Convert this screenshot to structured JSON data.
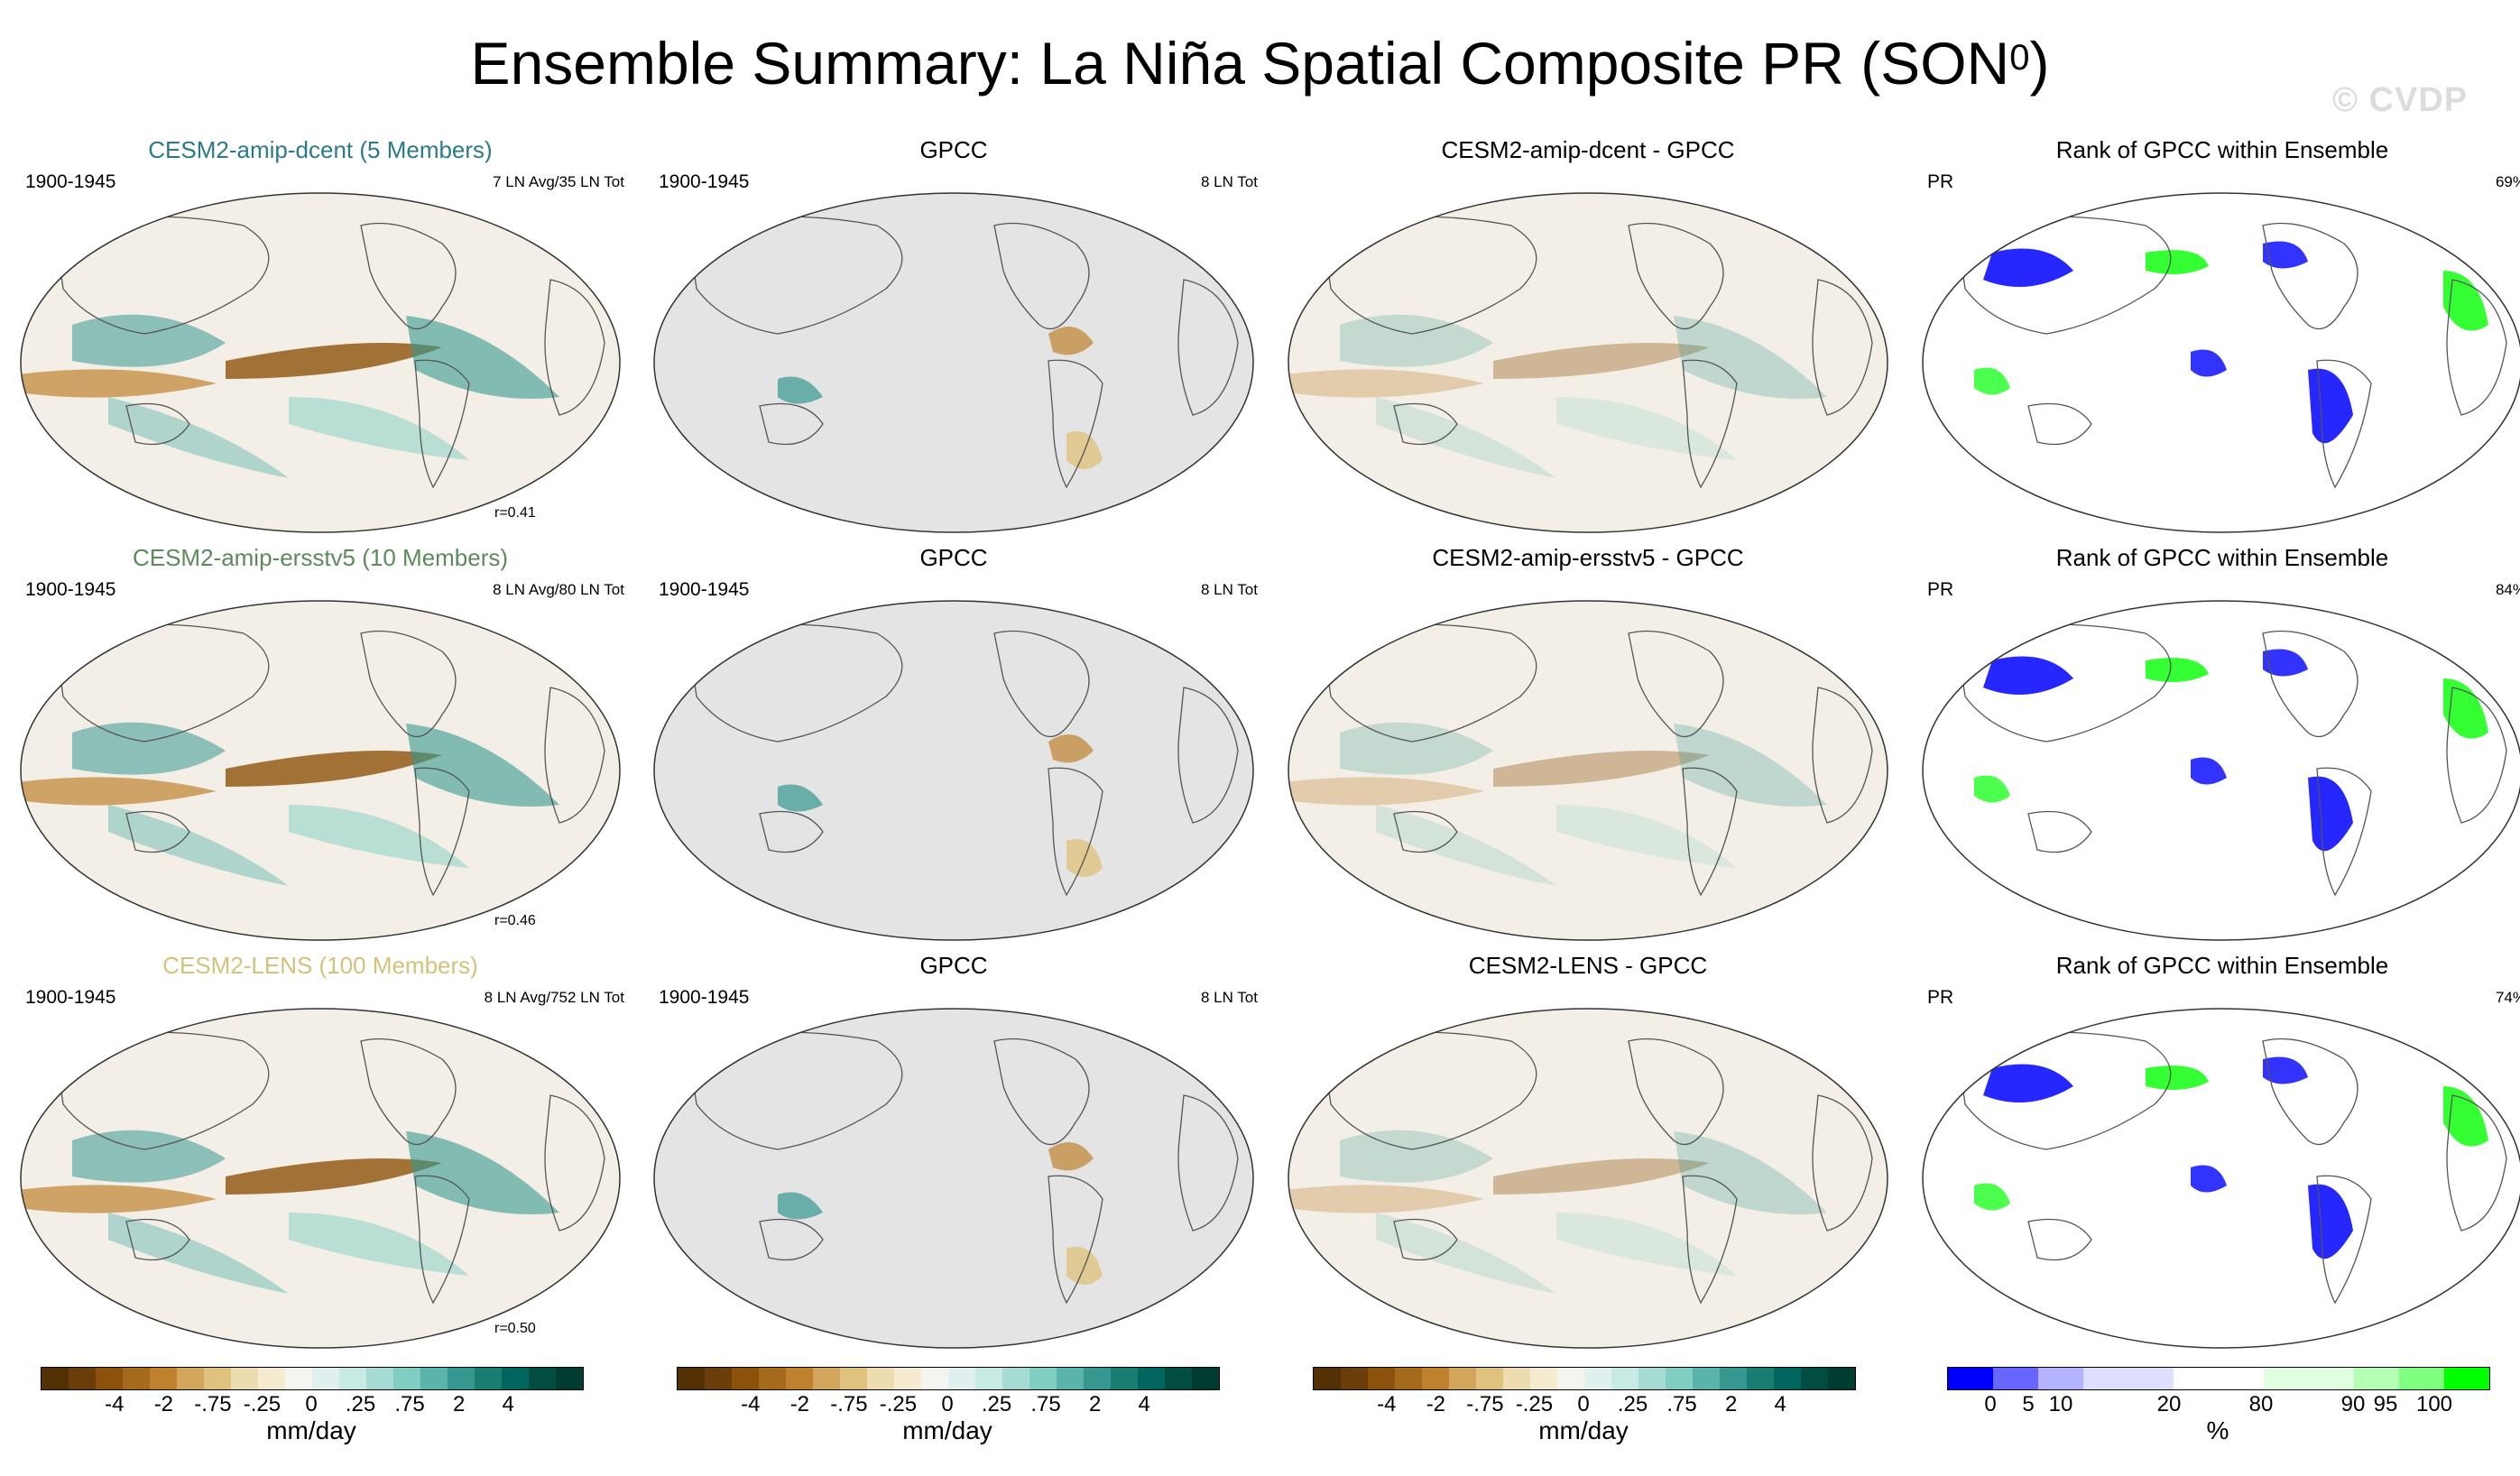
{
  "title": "Ensemble Summary: La Niña Spatial Composite PR (SON",
  "title_sup": "0",
  "title_close": ")",
  "watermark": "© CVDP",
  "rows": [
    {
      "model": {
        "title": "CESM2-amip-dcent (5 Members)",
        "title_color": "#2a7b86",
        "period": "1900-1945",
        "note": "7 LN Avg/35 LN Tot",
        "corr": "r=0.41"
      },
      "obs": {
        "title": "GPCC",
        "period": "1900-1945",
        "note": "8 LN Tot"
      },
      "diff": {
        "title": "CESM2-amip-dcent - GPCC"
      },
      "rank": {
        "title": "Rank of GPCC within Ensemble",
        "var": "PR",
        "pct": "69%"
      }
    },
    {
      "model": {
        "title": "CESM2-amip-ersstv5 (10 Members)",
        "title_color": "#5c8a5a",
        "period": "1900-1945",
        "note": "8 LN Avg/80 LN Tot",
        "corr": "r=0.46"
      },
      "obs": {
        "title": "GPCC",
        "period": "1900-1945",
        "note": "8 LN Tot"
      },
      "diff": {
        "title": "CESM2-amip-ersstv5 - GPCC"
      },
      "rank": {
        "title": "Rank of GPCC within Ensemble",
        "var": "PR",
        "pct": "84%"
      }
    },
    {
      "model": {
        "title": "CESM2-LENS (100 Members)",
        "title_color": "#d2c27a",
        "period": "1900-1945",
        "note": "8 LN Avg/752 LN Tot",
        "corr": "r=0.50"
      },
      "obs": {
        "title": "GPCC",
        "period": "1900-1945",
        "note": "8 LN Tot"
      },
      "diff": {
        "title": "CESM2-LENS - GPCC"
      },
      "rank": {
        "title": "Rank of GPCC within Ensemble",
        "var": "PR",
        "pct": "74%"
      }
    }
  ],
  "colorbars": {
    "pr": {
      "colors": [
        "#543005",
        "#6b3d0a",
        "#8c510a",
        "#a66a1c",
        "#bf812d",
        "#d4a55c",
        "#dfc27d",
        "#ecdcb0",
        "#f6ebd1",
        "#f5f5f0",
        "#e0f0ef",
        "#c7eae5",
        "#a5dbd3",
        "#80cdc1",
        "#5ab4ac",
        "#35978f",
        "#1a7d74",
        "#01665e",
        "#014d42",
        "#003c30"
      ],
      "ticks": [
        "-4",
        "-2",
        "-.75",
        "-.25",
        "0",
        ".25",
        ".75",
        "2",
        "4"
      ],
      "unit": "mm/day"
    },
    "rank": {
      "colors": [
        "#0000ff",
        "#6666ff",
        "#b3b3ff",
        "#dedeff",
        "#dedeff",
        "#ffffff",
        "#ffffff",
        "#e0ffe0",
        "#e0ffe0",
        "#b3ffb3",
        "#80ff80",
        "#00ff00"
      ],
      "ticks": [
        "0",
        "5",
        "10",
        "20",
        "80",
        "90",
        "95",
        "100"
      ],
      "unit": "%"
    }
  }
}
